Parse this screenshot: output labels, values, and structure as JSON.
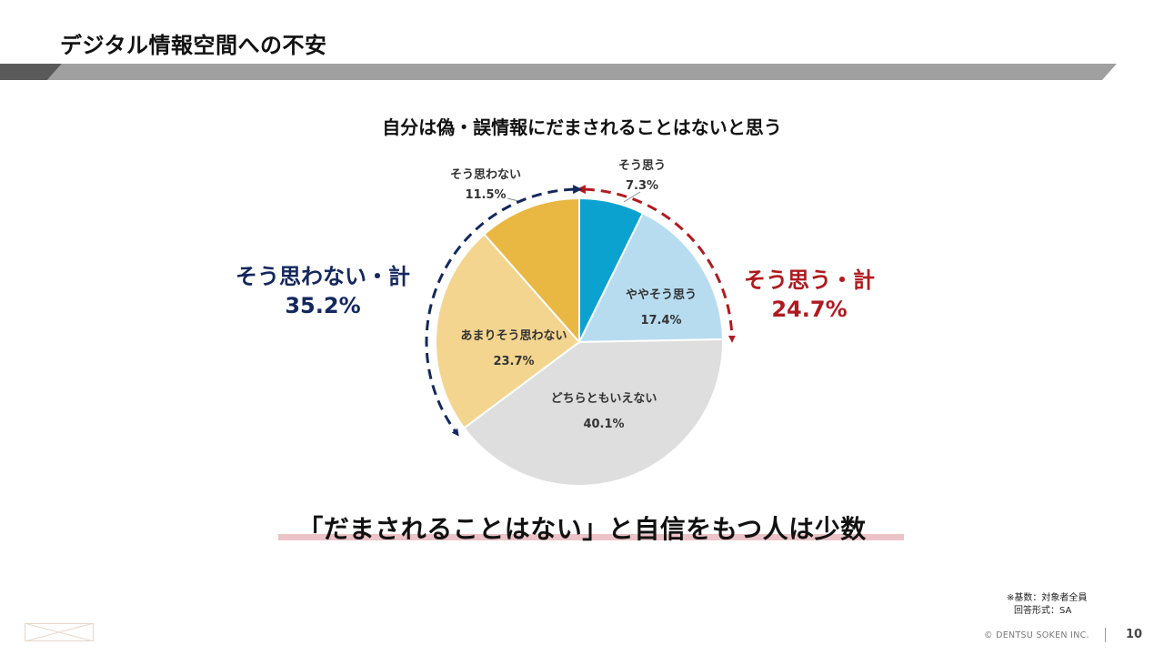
{
  "page": {
    "title": "デジタル情報空間への不安",
    "conclusion": "「だまされることはない」と自信をもつ人は少数",
    "footnote_line1": "※基数：対象者全員",
    "footnote_line2": "回答形式：SA",
    "copyright": "© DENTSU SOKEN INC.",
    "page_number": "10"
  },
  "colors": {
    "band": "#a0a0a0",
    "band_dark": "#5a5a5a",
    "positive_accent": "#b01a1f",
    "negative_accent": "#14285e",
    "highlight": "#ecc3c8"
  },
  "chart_data": {
    "type": "pie",
    "title": "自分は偽・誤情報にだまされることはないと思う",
    "slices": [
      {
        "label": "そう思う",
        "value": 7.3,
        "value_label": "7.3%",
        "color": "#0ba2d0"
      },
      {
        "label": "ややそう思う",
        "value": 17.4,
        "value_label": "17.4%",
        "color": "#b7dcf0"
      },
      {
        "label": "どちらともいえない",
        "value": 40.1,
        "value_label": "40.1%",
        "color": "#dedede"
      },
      {
        "label": "あまりそう思わない",
        "value": 23.7,
        "value_label": "23.7%",
        "color": "#f3d590"
      },
      {
        "label": "そう思わない",
        "value": 11.5,
        "value_label": "11.5%",
        "color": "#e9b843"
      }
    ],
    "groups": {
      "positive": {
        "label": "そう思う・計",
        "value": 24.7,
        "value_label": "24.7%"
      },
      "negative": {
        "label": "そう思わない・計",
        "value": 35.2,
        "value_label": "35.2%"
      }
    }
  }
}
